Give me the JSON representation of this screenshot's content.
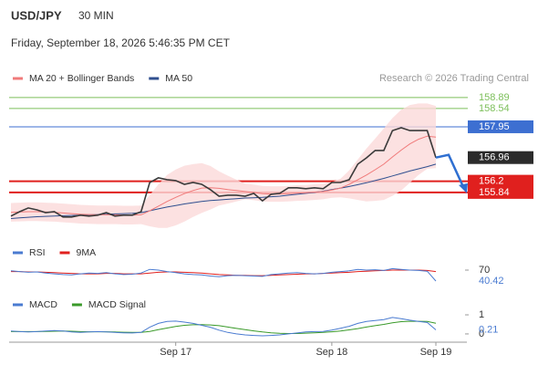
{
  "header": {
    "symbol": "USD/JPY",
    "timeframe": "30 MIN",
    "datetime": "Friday, September 18, 2026 5:46:35 PM CET",
    "credit": "Research © 2026 Trading Central"
  },
  "chart_data": [
    {
      "type": "line",
      "categories": [
        null,
        null,
        null,
        null,
        null,
        null,
        null,
        null,
        null,
        null,
        null,
        null,
        null,
        null,
        null,
        null,
        null,
        null,
        null,
        "Sep 17",
        null,
        null,
        null,
        null,
        null,
        null,
        null,
        null,
        null,
        null,
        null,
        null,
        null,
        null,
        null,
        null,
        null,
        "Sep 18",
        null,
        null,
        null,
        null,
        null,
        null,
        null,
        null,
        null,
        null,
        null,
        "Sep 19"
      ],
      "ylim": [
        154.34,
        159.24
      ],
      "levels": [
        {
          "value": 158.89,
          "color": "#7cbf5a"
        },
        {
          "value": 158.54,
          "color": "#7cbf5a"
        },
        {
          "value": 157.95,
          "color": "#3d6fd1"
        },
        {
          "value": 156.2,
          "color": "#e0201e"
        },
        {
          "value": 155.84,
          "color": "#e0201e"
        }
      ],
      "series": [
        {
          "color": "#3a3a3a",
          "values": [
            155.08,
            155.22,
            155.34,
            155.28,
            155.19,
            155.22,
            155.05,
            155.05,
            155.11,
            155.08,
            155.11,
            155.19,
            155.08,
            155.11,
            155.11,
            155.22,
            156.16,
            156.31,
            156.25,
            156.22,
            156.1,
            156.16,
            156.1,
            155.93,
            155.72,
            155.75,
            155.75,
            155.72,
            155.81,
            155.57,
            155.78,
            155.81,
            155.99,
            155.99,
            155.96,
            155.99,
            155.96,
            156.16,
            156.16,
            156.25,
            156.75,
            156.95,
            157.19,
            157.19,
            157.83,
            157.92,
            157.83,
            157.83,
            157.83,
            156.96
          ]
        },
        {
          "name": "MA 20 + Bollinger Bands",
          "color": "#f07a7a",
          "band_color": "#fbd9d9",
          "values": [
            155.2,
            155.21,
            155.22,
            155.22,
            155.21,
            155.2,
            155.18,
            155.16,
            155.14,
            155.13,
            155.12,
            155.12,
            155.12,
            155.11,
            155.11,
            155.12,
            155.25,
            155.4,
            155.55,
            155.68,
            155.8,
            155.9,
            155.98,
            155.99,
            155.97,
            155.93,
            155.9,
            155.87,
            155.84,
            155.8,
            155.79,
            155.79,
            155.8,
            155.82,
            155.83,
            155.85,
            155.87,
            155.92,
            155.98,
            156.1,
            156.25,
            156.4,
            156.57,
            156.75,
            156.98,
            157.2,
            157.4,
            157.55,
            157.65,
            157.62
          ],
          "band_upper": [
            155.5,
            155.51,
            155.52,
            155.52,
            155.51,
            155.5,
            155.48,
            155.46,
            155.44,
            155.43,
            155.42,
            155.42,
            155.42,
            155.41,
            155.41,
            155.42,
            155.75,
            156.1,
            156.4,
            156.58,
            156.7,
            156.75,
            156.78,
            156.69,
            156.52,
            156.38,
            156.25,
            156.12,
            156.09,
            156.05,
            156.04,
            156.04,
            156.05,
            156.07,
            156.08,
            156.1,
            156.12,
            156.17,
            156.28,
            156.55,
            156.9,
            157.25,
            157.57,
            157.9,
            158.23,
            158.5,
            158.65,
            158.7,
            158.7,
            158.62
          ],
          "band_lower": [
            154.9,
            154.91,
            154.92,
            154.92,
            154.91,
            154.9,
            154.88,
            154.86,
            154.84,
            154.83,
            154.82,
            154.82,
            154.82,
            154.81,
            154.81,
            154.82,
            154.75,
            154.7,
            154.7,
            154.78,
            154.9,
            155.05,
            155.18,
            155.29,
            155.42,
            155.48,
            155.55,
            155.62,
            155.59,
            155.55,
            155.54,
            155.54,
            155.55,
            155.57,
            155.58,
            155.6,
            155.62,
            155.67,
            155.68,
            155.65,
            155.6,
            155.55,
            155.57,
            155.6,
            155.73,
            155.9,
            156.15,
            156.4,
            156.6,
            156.62
          ]
        },
        {
          "name": "MA 50",
          "color": "#2f4f8f",
          "values": [
            155.0,
            155.02,
            155.04,
            155.06,
            155.07,
            155.08,
            155.09,
            155.1,
            155.11,
            155.12,
            155.13,
            155.14,
            155.15,
            155.16,
            155.17,
            155.19,
            155.25,
            155.31,
            155.37,
            155.42,
            155.47,
            155.51,
            155.55,
            155.58,
            155.6,
            155.62,
            155.64,
            155.66,
            155.67,
            155.68,
            155.7,
            155.72,
            155.75,
            155.78,
            155.81,
            155.84,
            155.88,
            155.93,
            155.98,
            156.03,
            156.09,
            156.15,
            156.22,
            156.29,
            156.37,
            156.45,
            156.53,
            156.6,
            156.67,
            156.75
          ]
        }
      ]
    },
    {
      "type": "line",
      "ylim": [
        20.7,
        89.7
      ],
      "yticks": [
        70
      ],
      "series": [
        {
          "name": "RSI",
          "color": "#4a7bd1",
          "values": [
            68,
            66,
            64,
            65,
            62,
            60,
            58,
            57,
            60,
            62,
            61,
            63,
            60,
            58,
            59,
            62,
            72,
            70,
            66,
            63,
            60,
            58,
            57,
            54,
            52,
            55,
            56,
            55,
            54,
            53,
            58,
            60,
            62,
            63,
            61,
            60,
            61,
            64,
            66,
            68,
            72,
            70,
            71,
            69,
            74,
            72,
            70,
            69,
            67,
            40.42
          ]
        },
        {
          "name": "9MA",
          "color": "#e0201e",
          "values": [
            66,
            66,
            65,
            65,
            64,
            63,
            62,
            61,
            60,
            60,
            60,
            61,
            61,
            60,
            60,
            60,
            62,
            64,
            65,
            65,
            64,
            63,
            62,
            60,
            58,
            57,
            56,
            56,
            55,
            55,
            56,
            57,
            58,
            59,
            60,
            60,
            61,
            62,
            63,
            64,
            66,
            67,
            68,
            69,
            70,
            70,
            70,
            70,
            69,
            66
          ]
        }
      ]
    },
    {
      "type": "line",
      "ylim": [
        -0.29,
        1.24
      ],
      "yticks": [
        1,
        0
      ],
      "series": [
        {
          "name": "MACD",
          "color": "#4a7bd1",
          "values": [
            0.15,
            0.12,
            0.1,
            0.12,
            0.15,
            0.18,
            0.15,
            0.1,
            0.08,
            0.1,
            0.12,
            0.1,
            0.08,
            0.06,
            0.05,
            0.08,
            0.35,
            0.55,
            0.65,
            0.67,
            0.62,
            0.55,
            0.45,
            0.35,
            0.2,
            0.08,
            0.0,
            -0.05,
            -0.08,
            -0.1,
            -0.08,
            -0.05,
            0.0,
            0.05,
            0.1,
            0.12,
            0.13,
            0.2,
            0.3,
            0.4,
            0.55,
            0.65,
            0.7,
            0.75,
            0.86,
            0.8,
            0.72,
            0.65,
            0.6,
            0.21
          ]
        },
        {
          "name": "MACD Signal",
          "color": "#3a9a2a",
          "values": [
            0.12,
            0.12,
            0.12,
            0.12,
            0.13,
            0.14,
            0.15,
            0.14,
            0.12,
            0.11,
            0.11,
            0.11,
            0.1,
            0.09,
            0.08,
            0.08,
            0.13,
            0.22,
            0.31,
            0.39,
            0.45,
            0.48,
            0.49,
            0.47,
            0.43,
            0.36,
            0.29,
            0.22,
            0.16,
            0.1,
            0.06,
            0.03,
            0.02,
            0.02,
            0.04,
            0.06,
            0.08,
            0.11,
            0.15,
            0.21,
            0.28,
            0.36,
            0.43,
            0.5,
            0.58,
            0.64,
            0.66,
            0.66,
            0.65,
            0.56
          ]
        }
      ]
    }
  ]
}
